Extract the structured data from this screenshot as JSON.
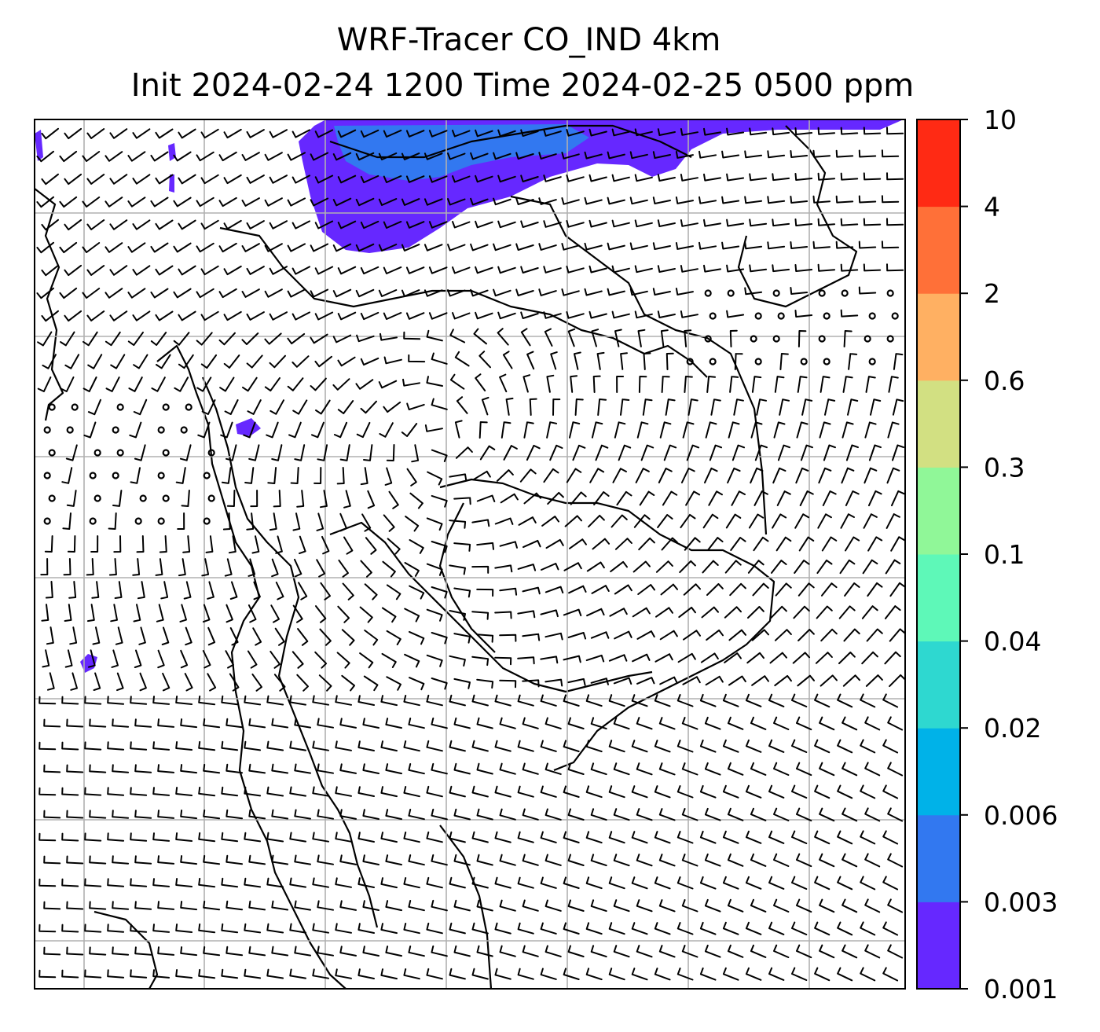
{
  "title": {
    "line1": "WRF-Tracer CO_IND 4km",
    "line2": "Init 2024-02-24 1200 Time 2024-02-25 0500 ppm"
  },
  "colorbar": {
    "levels": [
      "0.001",
      "0.003",
      "0.006",
      "0.02",
      "0.04",
      "0.1",
      "0.3",
      "0.6",
      "2",
      "4",
      "10"
    ],
    "colors": [
      "#6628ff",
      "#3278f0",
      "#00b2e8",
      "#2ed8d0",
      "#5ef8b8",
      "#90f798",
      "#d2e082",
      "#ffb062",
      "#ff7038",
      "#ff2a14"
    ]
  },
  "map": {
    "tracer_colors": {
      "low": "#6628ff",
      "mid": "#3278f0"
    },
    "gridline_color": "#b0b0b0",
    "coastline_color": "#000000"
  }
}
